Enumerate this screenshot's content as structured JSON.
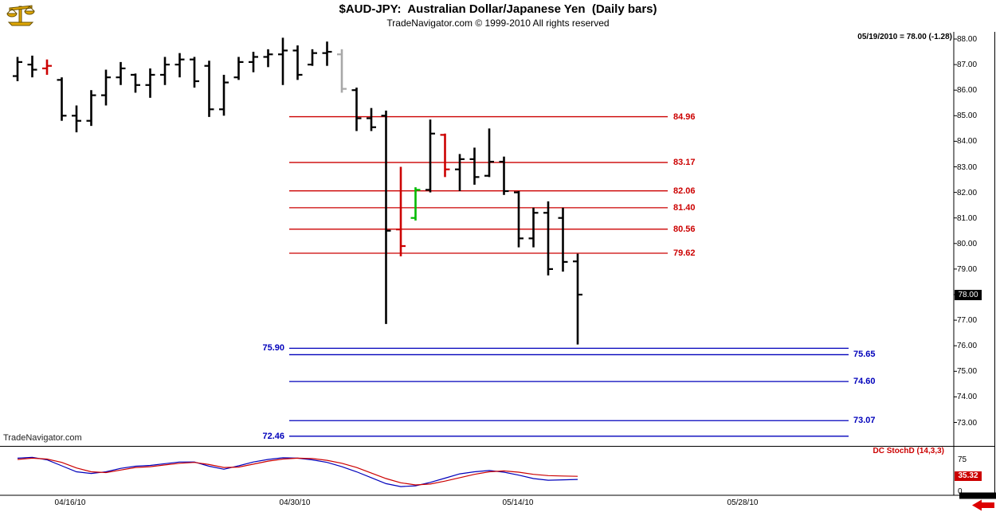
{
  "header": {
    "title": "$AUD-JPY:  Australian Dollar/Japanese Yen  (Daily bars)",
    "subtitle": "TradeNavigator.com © 1999-2010 All rights reserved",
    "quote": "05/19/2010 = 78.00 (-1.28)"
  },
  "watermark": "TradeNavigator.com",
  "colors": {
    "bar_black": "#000000",
    "bar_red": "#cc0000",
    "bar_green": "#00bb00",
    "bar_gray": "#a8a8a8",
    "resistance": "#cc0000",
    "support": "#0000bb",
    "stoch_d": "#cc0000",
    "stoch_k": "#0000bb",
    "price_flag_bg": "#000000",
    "price_flag_fg": "#ffffff",
    "stoch_flag_bg": "#cc0000"
  },
  "price_axis": {
    "labels": [
      "88.00",
      "87.00",
      "86.00",
      "85.00",
      "84.00",
      "83.00",
      "82.00",
      "81.00",
      "80.00",
      "79.00",
      "78.00",
      "77.00",
      "76.00",
      "75.00",
      "74.00",
      "73.00"
    ],
    "flag": "78.00"
  },
  "x_axis": {
    "labels": [
      "04/16/10",
      "04/30/10",
      "05/14/10",
      "05/28/10"
    ]
  },
  "indicator": {
    "label": "DC StochD (14,3,3)",
    "scale_labels": [
      {
        "label": "75",
        "value": 75
      },
      {
        "label": "0",
        "value": 0
      }
    ],
    "flag": "35.32"
  },
  "chart_data": {
    "type": "ohlc-bar",
    "title": "$AUD-JPY: Australian Dollar/Japanese Yen (Daily bars)",
    "ylim": [
      72.0,
      88.3
    ],
    "last": {
      "date": "05/19/2010",
      "close": 78.0,
      "change": -1.28
    },
    "resistance_levels": [
      {
        "value": 84.96,
        "label": "84.96"
      },
      {
        "value": 83.17,
        "label": "83.17"
      },
      {
        "value": 82.06,
        "label": "82.06"
      },
      {
        "value": 81.4,
        "label": "81.40"
      },
      {
        "value": 80.56,
        "label": "80.56"
      },
      {
        "value": 79.62,
        "label": "79.62"
      }
    ],
    "support_levels": [
      {
        "value": 75.9,
        "label": "75.90",
        "label_side": "left"
      },
      {
        "value": 75.65,
        "label": "75.65",
        "label_side": "right"
      },
      {
        "value": 74.6,
        "label": "74.60",
        "label_side": "right"
      },
      {
        "value": 73.07,
        "label": "73.07",
        "label_side": "right"
      },
      {
        "value": 72.46,
        "label": "72.46",
        "label_side": "left"
      }
    ],
    "bars": [
      {
        "o": 86.55,
        "h": 87.3,
        "l": 86.35,
        "c": 87.1,
        "col": "black"
      },
      {
        "o": 87.0,
        "h": 87.35,
        "l": 86.5,
        "c": 86.8,
        "col": "black"
      },
      {
        "o": 86.85,
        "h": 87.2,
        "l": 86.6,
        "c": 86.95,
        "col": "red"
      },
      {
        "o": 86.4,
        "h": 86.5,
        "l": 84.8,
        "c": 85.0,
        "col": "black"
      },
      {
        "o": 85.0,
        "h": 85.4,
        "l": 84.35,
        "c": 84.8,
        "col": "black"
      },
      {
        "o": 84.8,
        "h": 86.0,
        "l": 84.6,
        "c": 85.8,
        "col": "black"
      },
      {
        "o": 85.8,
        "h": 86.8,
        "l": 85.4,
        "c": 86.5,
        "col": "black"
      },
      {
        "o": 86.5,
        "h": 87.1,
        "l": 86.2,
        "c": 86.85,
        "col": "black"
      },
      {
        "o": 86.6,
        "h": 86.65,
        "l": 85.9,
        "c": 86.2,
        "col": "black"
      },
      {
        "o": 86.2,
        "h": 86.85,
        "l": 85.7,
        "c": 86.6,
        "col": "black"
      },
      {
        "o": 86.6,
        "h": 87.3,
        "l": 86.2,
        "c": 87.0,
        "col": "black"
      },
      {
        "o": 87.0,
        "h": 87.45,
        "l": 86.5,
        "c": 87.2,
        "col": "black"
      },
      {
        "o": 87.2,
        "h": 87.3,
        "l": 86.1,
        "c": 86.35,
        "col": "black"
      },
      {
        "o": 86.95,
        "h": 87.15,
        "l": 84.95,
        "c": 85.25,
        "col": "black"
      },
      {
        "o": 85.25,
        "h": 86.6,
        "l": 85.0,
        "c": 86.3,
        "col": "black"
      },
      {
        "o": 86.5,
        "h": 87.3,
        "l": 86.4,
        "c": 87.1,
        "col": "black"
      },
      {
        "o": 87.1,
        "h": 87.5,
        "l": 86.7,
        "c": 87.3,
        "col": "black"
      },
      {
        "o": 87.3,
        "h": 87.6,
        "l": 86.9,
        "c": 87.4,
        "col": "black"
      },
      {
        "o": 87.4,
        "h": 88.05,
        "l": 86.2,
        "c": 87.55,
        "col": "black"
      },
      {
        "o": 87.55,
        "h": 87.75,
        "l": 86.4,
        "c": 86.6,
        "col": "black"
      },
      {
        "o": 87.0,
        "h": 87.6,
        "l": 86.95,
        "c": 87.45,
        "col": "black"
      },
      {
        "o": 87.45,
        "h": 87.9,
        "l": 86.95,
        "c": 87.5,
        "col": "black"
      },
      {
        "o": 87.4,
        "h": 87.6,
        "l": 85.9,
        "c": 86.05,
        "col": "gray"
      },
      {
        "o": 86.0,
        "h": 86.1,
        "l": 84.4,
        "c": 84.9,
        "col": "black"
      },
      {
        "o": 84.9,
        "h": 85.3,
        "l": 84.4,
        "c": 84.55,
        "col": "black"
      },
      {
        "o": 85.0,
        "h": 85.2,
        "l": 76.85,
        "c": 80.5,
        "col": "black"
      },
      {
        "o": 80.55,
        "h": 83.0,
        "l": 79.5,
        "c": 79.9,
        "col": "red"
      },
      {
        "o": 81.0,
        "h": 82.2,
        "l": 80.9,
        "c": 82.1,
        "col": "green"
      },
      {
        "o": 82.1,
        "h": 84.85,
        "l": 82.0,
        "c": 84.3,
        "col": "black"
      },
      {
        "o": 84.25,
        "h": 84.3,
        "l": 82.6,
        "c": 82.9,
        "col": "red"
      },
      {
        "o": 82.9,
        "h": 83.5,
        "l": 82.05,
        "c": 83.3,
        "col": "black"
      },
      {
        "o": 83.3,
        "h": 83.75,
        "l": 82.3,
        "c": 82.6,
        "col": "black"
      },
      {
        "o": 82.65,
        "h": 84.5,
        "l": 82.6,
        "c": 83.2,
        "col": "black"
      },
      {
        "o": 83.2,
        "h": 83.4,
        "l": 81.9,
        "c": 82.05,
        "col": "black"
      },
      {
        "o": 82.0,
        "h": 82.05,
        "l": 79.85,
        "c": 80.2,
        "col": "black"
      },
      {
        "o": 80.2,
        "h": 81.4,
        "l": 79.85,
        "c": 81.2,
        "col": "black"
      },
      {
        "o": 81.2,
        "h": 81.65,
        "l": 78.75,
        "c": 79.0,
        "col": "black"
      },
      {
        "o": 81.0,
        "h": 81.4,
        "l": 78.9,
        "c": 79.28,
        "col": "black"
      },
      {
        "o": 79.3,
        "h": 79.6,
        "l": 76.05,
        "c": 78.0,
        "col": "black"
      }
    ],
    "stochastic": {
      "name": "DC StochD (14,3,3)",
      "range": [
        0,
        100
      ],
      "last_d": 35.32,
      "d_values": [
        75,
        78,
        76,
        68,
        55,
        46,
        44,
        50,
        56,
        58,
        62,
        66,
        68,
        63,
        56,
        57,
        64,
        71,
        76,
        78,
        77,
        73,
        66,
        56,
        43,
        30,
        20,
        15,
        17,
        24,
        32,
        40,
        46,
        48,
        45,
        40,
        37,
        36,
        35.32
      ],
      "k_values": [
        78,
        80,
        74,
        60,
        46,
        42,
        46,
        54,
        59,
        61,
        65,
        69,
        69,
        59,
        52,
        60,
        69,
        75,
        79,
        78,
        74,
        68,
        58,
        46,
        32,
        18,
        11,
        13,
        21,
        31,
        41,
        46,
        49,
        45,
        38,
        30,
        26,
        27,
        28
      ]
    }
  }
}
